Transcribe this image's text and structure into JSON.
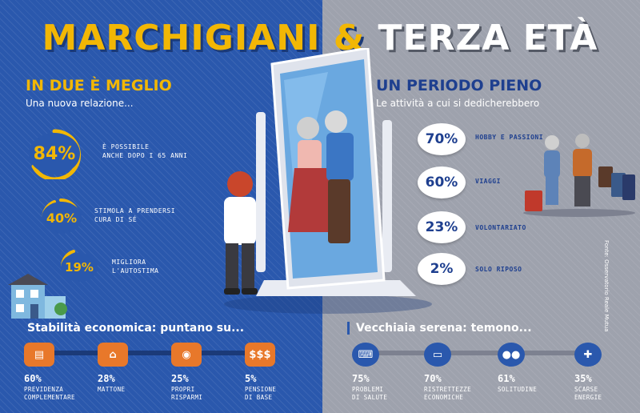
{
  "title": {
    "part1": "MARCHIGIANI",
    "amp": "&",
    "part2": "TERZA ETÀ"
  },
  "left": {
    "heading": "IN DUE È MEGLIO",
    "subheading": "Una nuova relazione...",
    "items": [
      {
        "value": "84%",
        "label_l1": "È POSSIBILE",
        "label_l2": "ANCHE DOPO I 65 ANNI"
      },
      {
        "value": "40%",
        "label_l1": "STIMOLA A PRENDERSI",
        "label_l2": "CURA DI SÉ"
      },
      {
        "value": "19%",
        "label_l1": "MIGLIORA",
        "label_l2": "L'AUTOSTIMA"
      }
    ]
  },
  "right": {
    "heading": "UN PERIODO PIENO",
    "subheading": "Le attività a cui si dedicherebbero",
    "items": [
      {
        "value": "70%",
        "label": "HOBBY E PASSIONI"
      },
      {
        "value": "60%",
        "label": "VIAGGI"
      },
      {
        "value": "23%",
        "label": "VOLONTARIATO"
      },
      {
        "value": "2%",
        "label": "SOLO RIPOSO"
      }
    ]
  },
  "bottom_left": {
    "heading": "Stabilità economica: puntano su...",
    "items": [
      {
        "value": "60%",
        "label_l1": "PREVIDENZA",
        "label_l2": "COMPLEMENTARE",
        "icon": "document-icon"
      },
      {
        "value": "28%",
        "label_l1": "MATTONE",
        "label_l2": "",
        "icon": "house-icon"
      },
      {
        "value": "25%",
        "label_l1": "PROPRI",
        "label_l2": "RISPARMI",
        "icon": "piggy-bank-icon"
      },
      {
        "value": "5%",
        "label_l1": "PENSIONE",
        "label_l2": "DI BASE",
        "icon": "dollar-icon"
      }
    ]
  },
  "bottom_right": {
    "heading": "Vecchiaia serena: temono...",
    "items": [
      {
        "value": "75%",
        "label_l1": "PROBLEMI",
        "label_l2": "DI SALUTE",
        "icon": "iv-drip-icon"
      },
      {
        "value": "70%",
        "label_l1": "RISTRETTEZZE",
        "label_l2": "ECONOMICHE",
        "icon": "money-icon"
      },
      {
        "value": "61%",
        "label_l1": "SOLITUDINE",
        "label_l2": "",
        "icon": "people-icon"
      },
      {
        "value": "35%",
        "label_l1": "SCARSE",
        "label_l2": "ENERGIE",
        "icon": "broken-bone-icon"
      }
    ]
  },
  "source": "Fonte: Osservatorio Reale Mutua",
  "colors": {
    "left_bg": "#2a58ad",
    "right_bg": "#9ea2ad",
    "accent": "#f2b705",
    "orange": "#e8782a",
    "navy": "#1e3f8f"
  }
}
